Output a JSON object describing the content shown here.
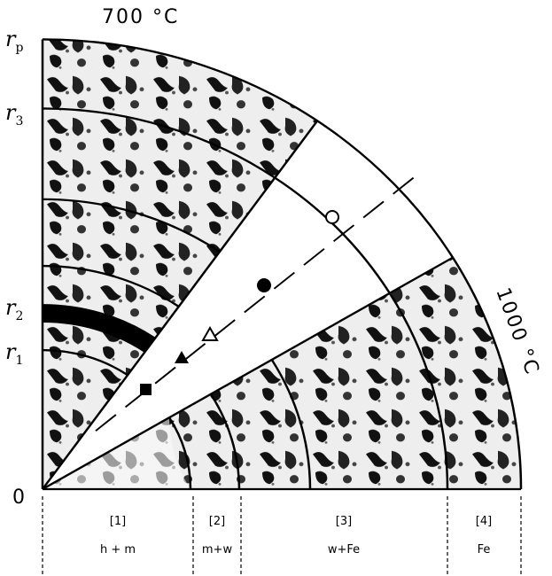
{
  "top_label": "700 °C",
  "right_label": "1000 °C",
  "origin_label": "0",
  "radius_labels": [
    {
      "main": "r",
      "sub": "p"
    },
    {
      "main": "r",
      "sub": "3"
    },
    {
      "main": "r",
      "sub": "2"
    },
    {
      "main": "r",
      "sub": "1"
    }
  ],
  "zones": [
    {
      "id": "[1]",
      "phase": "h + m"
    },
    {
      "id": "[2]",
      "phase": "m+w"
    },
    {
      "id": "[3]",
      "phase": "w+Fe"
    },
    {
      "id": "[4]",
      "phase": "Fe"
    }
  ]
}
